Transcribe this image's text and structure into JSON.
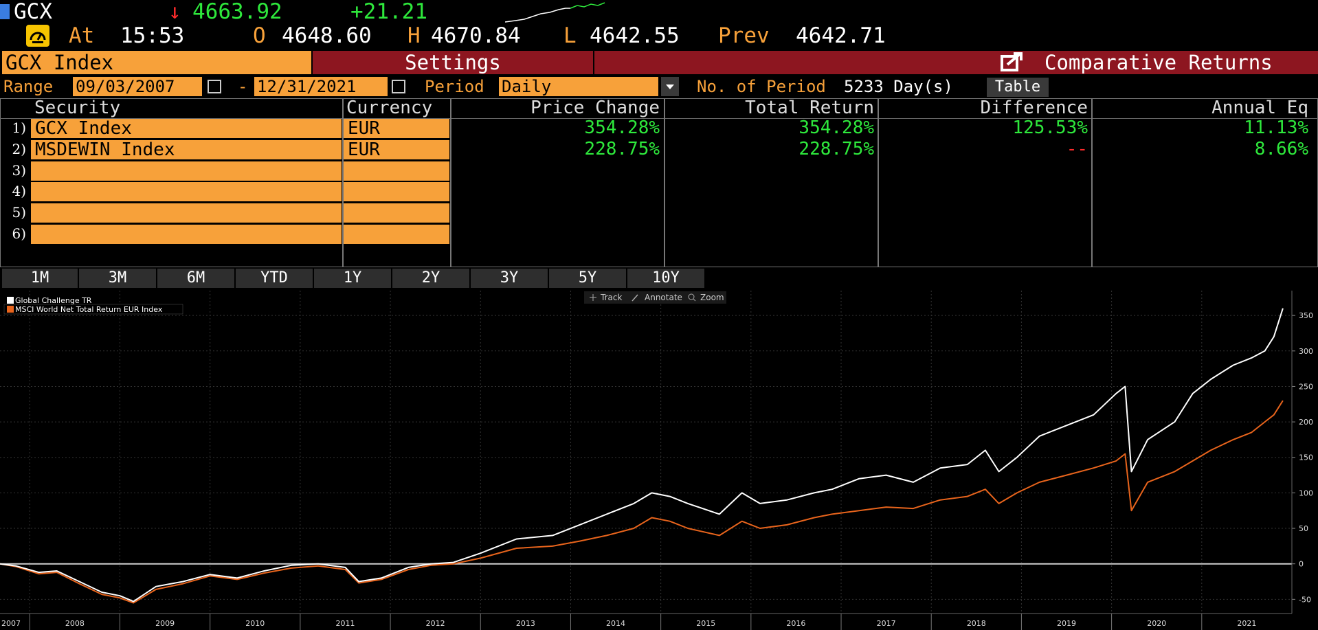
{
  "header": {
    "ticker": "GCX",
    "arrow": "↓",
    "last_price": "4663.92",
    "change": "+21.21",
    "at_label": "At",
    "time": "15:53",
    "open_label": "O",
    "open": "4648.60",
    "high_label": "H",
    "high": "4670.84",
    "low_label": "L",
    "low": "4642.55",
    "prev_label": "Prev",
    "prev": "4642.71"
  },
  "title_bar": {
    "security": "GCX Index",
    "settings": "Settings",
    "function_name": "Comparative Returns"
  },
  "controls": {
    "range_label": "Range",
    "start_date": "09/03/2007",
    "dash": "-",
    "end_date": "12/31/2021",
    "period_label": "Period",
    "period_value": "Daily",
    "num_period_label": "No. of Period",
    "num_period_value": "5233 Day(s)",
    "table_button": "Table"
  },
  "table": {
    "headers": [
      "Security",
      "Currency",
      "Price Change",
      "Total Return",
      "Difference",
      "Annual Eq"
    ],
    "rows": [
      {
        "num": "1)",
        "security": "GCX Index",
        "currency": "EUR",
        "price_change": "354.28%",
        "total_return": "354.28%",
        "difference": "125.53%",
        "annual_eq": "11.13%"
      },
      {
        "num": "2)",
        "security": "MSDEWIN Index",
        "currency": "EUR",
        "price_change": "228.75%",
        "total_return": "228.75%",
        "difference": "--",
        "annual_eq": "8.66%"
      },
      {
        "num": "3)",
        "security": "",
        "currency": "",
        "price_change": "",
        "total_return": "",
        "difference": "",
        "annual_eq": ""
      },
      {
        "num": "4)",
        "security": "",
        "currency": "",
        "price_change": "",
        "total_return": "",
        "difference": "",
        "annual_eq": ""
      },
      {
        "num": "5)",
        "security": "",
        "currency": "",
        "price_change": "",
        "total_return": "",
        "difference": "",
        "annual_eq": ""
      },
      {
        "num": "6)",
        "security": "",
        "currency": "",
        "price_change": "",
        "total_return": "",
        "difference": "",
        "annual_eq": ""
      }
    ]
  },
  "period_buttons": [
    "1M",
    "3M",
    "6M",
    "YTD",
    "1Y",
    "2Y",
    "3Y",
    "5Y",
    "10Y"
  ],
  "chart_tools": {
    "track": "Track",
    "annotate": "Annotate",
    "zoom": "Zoom"
  },
  "colors": {
    "amber": "#f7a13a",
    "green": "#2ee83c",
    "red": "#ff2b2b",
    "series_white": "#ffffff",
    "series_orange": "#e8641c",
    "title_red": "#8d1620"
  },
  "icons": [
    "speedometer-icon",
    "calendar-icon",
    "dropdown-arrow-icon",
    "export-icon",
    "crosshair-icon",
    "pencil-icon",
    "magnifier-icon",
    "sparkline-icon"
  ],
  "chart_data": {
    "type": "line",
    "legend": [
      "Global Challenge  TR",
      "MSCI World Net Total Return EUR Index"
    ],
    "legend_position": "top-left",
    "y_axis_side": "right",
    "ylim": [
      -70,
      385
    ],
    "y_ticks": [
      -50,
      0,
      50,
      100,
      150,
      200,
      250,
      300,
      350
    ],
    "x_ticks": [
      "2007",
      "2008",
      "2009",
      "2010",
      "2011",
      "2012",
      "2013",
      "2014",
      "2015",
      "2016",
      "2017",
      "2018",
      "2019",
      "2020",
      "2021"
    ],
    "xlim": [
      2007.67,
      2022.0
    ],
    "grid": true,
    "series": [
      {
        "name": "Global Challenge  TR",
        "color": "#ffffff",
        "x": [
          2007.67,
          2007.85,
          2008.1,
          2008.3,
          2008.55,
          2008.8,
          2009.0,
          2009.15,
          2009.4,
          2009.7,
          2010.0,
          2010.3,
          2010.6,
          2010.9,
          2011.2,
          2011.5,
          2011.65,
          2011.9,
          2012.2,
          2012.45,
          2012.7,
          2013.0,
          2013.4,
          2013.8,
          2014.1,
          2014.4,
          2014.7,
          2014.9,
          2015.1,
          2015.3,
          2015.65,
          2015.9,
          2016.1,
          2016.4,
          2016.7,
          2016.9,
          2017.2,
          2017.5,
          2017.8,
          2018.1,
          2018.4,
          2018.6,
          2018.75,
          2018.95,
          2019.2,
          2019.5,
          2019.8,
          2020.05,
          2020.15,
          2020.22,
          2020.4,
          2020.7,
          2020.9,
          2021.1,
          2021.35,
          2021.55,
          2021.7,
          2021.8,
          2021.9
        ],
        "values": [
          0,
          -3,
          -12,
          -10,
          -25,
          -40,
          -45,
          -53,
          -32,
          -25,
          -15,
          -20,
          -10,
          -2,
          0,
          -5,
          -25,
          -20,
          -5,
          0,
          2,
          15,
          35,
          40,
          55,
          70,
          85,
          100,
          95,
          85,
          70,
          100,
          85,
          90,
          100,
          105,
          120,
          125,
          115,
          135,
          140,
          160,
          130,
          150,
          180,
          195,
          210,
          240,
          250,
          130,
          175,
          200,
          240,
          260,
          280,
          290,
          300,
          320,
          360
        ]
      },
      {
        "name": "MSCI World Net Total Return EUR Index",
        "color": "#e8641c",
        "x": [
          2007.67,
          2007.85,
          2008.1,
          2008.3,
          2008.55,
          2008.8,
          2009.0,
          2009.15,
          2009.4,
          2009.7,
          2010.0,
          2010.3,
          2010.6,
          2010.9,
          2011.2,
          2011.5,
          2011.65,
          2011.9,
          2012.2,
          2012.45,
          2012.7,
          2013.0,
          2013.4,
          2013.8,
          2014.1,
          2014.4,
          2014.7,
          2014.9,
          2015.1,
          2015.3,
          2015.65,
          2015.9,
          2016.1,
          2016.4,
          2016.7,
          2016.9,
          2017.2,
          2017.5,
          2017.8,
          2018.1,
          2018.4,
          2018.6,
          2018.75,
          2018.95,
          2019.2,
          2019.5,
          2019.8,
          2020.05,
          2020.15,
          2020.22,
          2020.4,
          2020.7,
          2020.9,
          2021.1,
          2021.35,
          2021.55,
          2021.7,
          2021.8,
          2021.9
        ],
        "values": [
          0,
          -4,
          -14,
          -12,
          -28,
          -43,
          -48,
          -55,
          -36,
          -28,
          -17,
          -22,
          -13,
          -6,
          -3,
          -8,
          -27,
          -22,
          -8,
          -2,
          0,
          8,
          22,
          25,
          32,
          40,
          50,
          65,
          60,
          50,
          40,
          60,
          50,
          55,
          65,
          70,
          75,
          80,
          78,
          90,
          95,
          105,
          85,
          100,
          115,
          125,
          135,
          145,
          155,
          75,
          115,
          130,
          145,
          160,
          175,
          185,
          200,
          210,
          230
        ]
      }
    ]
  }
}
